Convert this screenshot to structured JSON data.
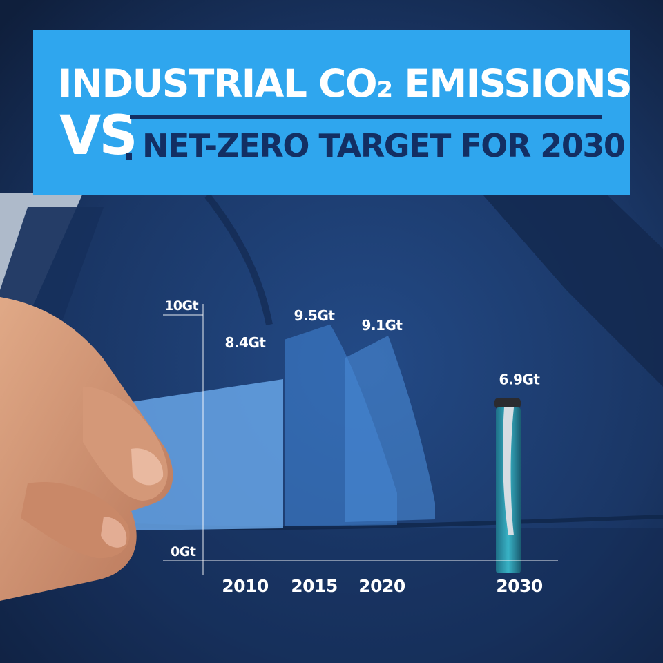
{
  "header": {
    "title_line1": "INDUSTRIAL CO₂ EMISSIONS",
    "title_vs": "VS",
    "title_line2": "NET-ZERO TARGET FOR 2030"
  },
  "colors": {
    "banner": "#2fa6ee",
    "banner_text_dark": "#132f63",
    "suit": "#1b3a6e",
    "handkerchief": "#5b9be0",
    "pen": "#2a9fb0"
  },
  "chart_data": {
    "type": "bar",
    "categories": [
      "2010",
      "2015",
      "2020",
      "2030"
    ],
    "values": [
      8.4,
      9.5,
      9.1,
      6.9
    ],
    "data_labels": [
      "8.4Gt",
      "9.5Gt",
      "9.1Gt",
      "6.9Gt"
    ],
    "yaxis_ticks": [
      "0Gt",
      "10Gt"
    ],
    "ylim": [
      0,
      10
    ],
    "grid": false,
    "legend": "none"
  }
}
